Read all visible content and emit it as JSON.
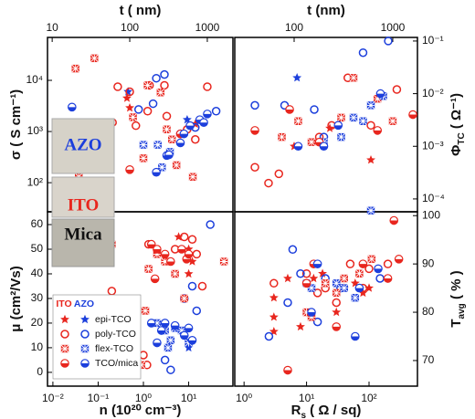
{
  "chart_data": [
    {
      "type": "scatter",
      "xlabel": "t  ( nm)",
      "ylabel": "σ  ( S cm⁻¹)",
      "xscale": "log",
      "yscale": "log",
      "xlim": [
        8.7,
        2140
      ],
      "ylim": [
        27,
        69000
      ],
      "xticks": [
        10,
        100,
        1000
      ],
      "yticks": [
        {
          "value": 100,
          "label": "10²"
        },
        {
          "value": 1000,
          "label": "10³"
        },
        {
          "value": 10000,
          "label": "10⁴"
        }
      ],
      "x_side": "top",
      "y_side": "left",
      "group_colors": [
        "#e8261e",
        "#1c3fdc"
      ],
      "annotations": [
        "AZO",
        "ITO"
      ],
      "series": [
        {
          "marker": "star",
          "groups": [
            {
              "x": [
                92,
                100,
                700
              ],
              "y": [
                4500,
                2900,
                1400
              ]
            },
            {
              "x": [
                550,
                95
              ],
              "y": [
                1700,
                6000
              ]
            }
          ]
        },
        {
          "marker": "open",
          "groups": [
            {
              "x": [
                60,
                70,
                100,
                180,
                280,
                170,
                300,
                550,
                700,
                1000,
                120
              ],
              "y": [
                1500,
                7500,
                6000,
                8000,
                8000,
                2500,
                2000,
                1100,
                700,
                7500,
                1300
              ]
            },
            {
              "x": [
                220,
                280,
                130,
                1300,
                700,
                450,
                200
              ],
              "y": [
                11000,
                13000,
                2700,
                2500,
                1200,
                900,
                3500
              ]
            }
          ]
        },
        {
          "marker": "cross",
          "groups": [
            {
              "x": [
                20,
                35,
                22,
                110,
                150,
                300,
                400,
                650,
                170,
                250,
                350
              ],
              "y": [
                17000,
                27000,
                130,
                1900,
                300,
                1100,
                220,
                130,
                8000,
                5800,
                700
              ]
            },
            {
              "x": [
                150,
                230,
                330,
                260
              ],
              "y": [
                550,
                550,
                400,
                200
              ]
            }
          ]
        },
        {
          "marker": "half",
          "groups": [
            {
              "x": [
                100,
                450
              ],
              "y": [
                180,
                900
              ]
            },
            {
              "x": [
                18,
                300,
                220,
                320,
                450,
                500,
                600,
                800,
                900,
                1000
              ],
              "y": [
                3000,
                340,
                160,
                350,
                600,
                900,
                1300,
                1700,
                1500,
                2200
              ]
            }
          ]
        }
      ]
    },
    {
      "type": "scatter",
      "xlabel": "t (nm)",
      "ylabel": {
        "main": "Φ",
        "sub": "TC",
        "unit": "  ( Ω⁻¹)"
      },
      "xscale": "log",
      "yscale": "log",
      "xlim": [
        25,
        1780
      ],
      "ylim": [
        5.7e-05,
        0.117
      ],
      "xticks": [
        100,
        1000
      ],
      "yticks": [
        {
          "value": 0.0001,
          "label": "10⁻⁴"
        },
        {
          "value": 0.001,
          "label": "10⁻³"
        },
        {
          "value": 0.01,
          "label": "10⁻²"
        },
        {
          "value": 0.1,
          "label": "10⁻¹"
        }
      ],
      "x_side": "top",
      "y_side": "right",
      "group_colors": [
        "#e8261e",
        "#1c3fdc"
      ],
      "series": [
        {
          "marker": "star",
          "groups": [
            {
              "x": [
                100,
                230,
                600
              ],
              "y": [
                0.001,
                0.0022,
                0.00055
              ]
            },
            {
              "x": [
                107
              ],
              "y": [
                0.02
              ]
            }
          ]
        },
        {
          "marker": "open",
          "groups": [
            {
              "x": [
                40,
                55,
                70,
                180,
                240,
                350,
                600,
                1100
              ],
              "y": [
                0.0004,
                0.0002,
                0.0003,
                0.0015,
                0.0025,
                0.02,
                0.0025,
                0.012
              ]
            },
            {
              "x": [
                40,
                80,
                160,
                500,
                900,
                200
              ],
              "y": [
                0.006,
                0.006,
                0.005,
                0.06,
                0.1,
                0.0015
              ]
            }
          ]
        },
        {
          "marker": "cross",
          "groups": [
            {
              "x": [
                75,
                110,
                300,
                400,
                700,
                1000,
                150
              ],
              "y": [
                0.0015,
                0.003,
                0.0035,
                0.02,
                0.008,
                0.003,
                0.0012
              ]
            },
            {
              "x": [
                200,
                300,
                400,
                500,
                600,
                800,
                600
              ],
              "y": [
                0.0012,
                0.0015,
                0.0035,
                0.003,
                0.006,
                0.009,
                6e-05
              ]
            }
          ]
        },
        {
          "marker": "half",
          "groups": [
            {
              "x": [
                40,
                90,
                180,
                1600,
                700
              ],
              "y": [
                0.002,
                0.005,
                0.0012,
                0.004,
                0.002
              ]
            },
            {
              "x": [
                110,
                280,
                750,
                200
              ],
              "y": [
                0.001,
                0.0025,
                0.01,
                0.001
              ]
            }
          ]
        }
      ]
    },
    {
      "type": "scatter",
      "xlabel": "n  (10²⁰ cm⁻³)",
      "ylabel": "μ  (cm²/Vs)",
      "xscale": "log",
      "yscale": "linear",
      "xlim": [
        0.0076,
        95
      ],
      "ylim": [
        -5.6,
        65.2
      ],
      "xticks": [
        {
          "value": 0.01,
          "label": "10⁻²"
        },
        {
          "value": 0.1,
          "label": "10⁻¹"
        },
        {
          "value": 1,
          "label": "10⁰"
        },
        {
          "value": 10,
          "label": "10¹"
        }
      ],
      "yticks": [
        0,
        10,
        20,
        30,
        40,
        50,
        60
      ],
      "x_side": "bottom",
      "y_side": "left",
      "group_colors": [
        "#e8261e",
        "#1c3fdc"
      ],
      "annotations": [
        "Mica"
      ],
      "legend": {
        "columns": [
          "ITO",
          "AZO"
        ],
        "labels": [
          "epi-TCO",
          "poly-TCO",
          "flex-TCO",
          "TCO/mica"
        ],
        "location": "lower left"
      },
      "series": [
        {
          "marker": "star",
          "groups": [
            {
              "x": [
                10,
                12,
                6,
                10
              ],
              "y": [
                50,
                45,
                55,
                40
              ]
            },
            {
              "x": [
                10
              ],
              "y": [
                10
              ]
            }
          ]
        },
        {
          "marker": "open",
          "groups": [
            {
              "x": [
                1.3,
                5,
                8,
                12,
                15,
                20,
                0.2,
                1.0,
                1.2
              ],
              "y": [
                52,
                50,
                55,
                54,
                48,
                35,
                33,
                7,
                3
              ]
            },
            {
              "x": [
                30,
                4,
                8,
                12,
                15,
                3
              ],
              "y": [
                60,
                1,
                30,
                35,
                25,
                5
              ]
            }
          ]
        },
        {
          "marker": "cross",
          "groups": [
            {
              "x": [
                0.15,
                0.2,
                0.9,
                1.1,
                1.3,
                2,
                3,
                5,
                8,
                60,
                0.4
              ],
              "y": [
                50,
                52,
                3,
                25,
                42,
                48,
                45,
                40,
                30,
                45,
                20
              ]
            },
            {
              "x": [
                2,
                3,
                4,
                5,
                7,
                10,
                3.5
              ],
              "y": [
                20,
                17,
                13,
                18,
                17,
                12,
                10
              ]
            }
          ]
        },
        {
          "marker": "half",
          "groups": [
            {
              "x": [
                1.5,
                2,
                3,
                4,
                7,
                9,
                10,
                1.8
              ],
              "y": [
                52,
                50,
                48,
                45,
                50,
                46,
                48,
                38
              ]
            },
            {
              "x": [
                1.5,
                2,
                2.5,
                3,
                5,
                8,
                10,
                12
              ],
              "y": [
                20,
                12,
                17,
                20,
                19,
                15,
                18,
                13
              ]
            }
          ]
        }
      ]
    },
    {
      "type": "scatter",
      "xlabel": {
        "main": "R",
        "sub": "s",
        "unit": "  ( Ω / sq)"
      },
      "ylabel": {
        "main": "T",
        "sub": "avg",
        "unit": "    ( % )"
      },
      "xscale": "log",
      "yscale": "linear",
      "xlim": [
        0.71,
        595
      ],
      "ylim": [
        64.7,
        100.8
      ],
      "xticks": [
        {
          "value": 1,
          "label": "10⁰"
        },
        {
          "value": 10,
          "label": "10¹"
        },
        {
          "value": 100,
          "label": "10²"
        }
      ],
      "yticks": [
        70,
        80,
        90,
        100
      ],
      "x_side": "bottom",
      "y_side": "right",
      "group_colors": [
        "#e8261e",
        "#1c3fdc"
      ],
      "series": [
        {
          "marker": "star",
          "groups": [
            {
              "x": [
                3,
                3,
                5,
                8,
                13,
                18,
                30,
                40,
                60,
                80,
                100,
                3
              ],
              "y": [
                83,
                79,
                87,
                77,
                87,
                88,
                80,
                85,
                86,
                84,
                85,
                76
              ]
            },
            {
              "x": [],
              "y": []
            }
          ]
        },
        {
          "marker": "open",
          "groups": [
            {
              "x": [
                3,
                10,
                15,
                20,
                30,
                50,
                80,
                100,
                200
              ],
              "y": [
                86,
                88,
                84,
                85,
                82,
                90,
                85,
                89,
                90
              ]
            },
            {
              "x": [
                2.5,
                5,
                6,
                15,
                20,
                35,
                150,
                8
              ],
              "y": [
                75,
                82,
                93,
                78,
                87,
                85,
                87,
                88
              ]
            }
          ]
        },
        {
          "marker": "cross",
          "groups": [
            {
              "x": [
                10,
                12,
                20,
                30,
                40,
                70,
                110
              ],
              "y": [
                80,
                79,
                86,
                84,
                87,
                88,
                91
              ]
            },
            {
              "x": [
                10,
                12,
                40,
                30,
                60
              ],
              "y": [
                86,
                85,
                85,
                86,
                83
              ]
            }
          ]
        },
        {
          "marker": "half",
          "groups": [
            {
              "x": [
                5,
                13,
                10,
                30,
                80,
                200,
                250,
                300
              ],
              "y": [
                68,
                90,
                86,
                77,
                90,
                87,
                99,
                91
              ]
            },
            {
              "x": [
                12,
                15,
                60,
                70,
                140
              ],
              "y": [
                80,
                90,
                75,
                85,
                89
              ]
            }
          ]
        }
      ]
    }
  ]
}
